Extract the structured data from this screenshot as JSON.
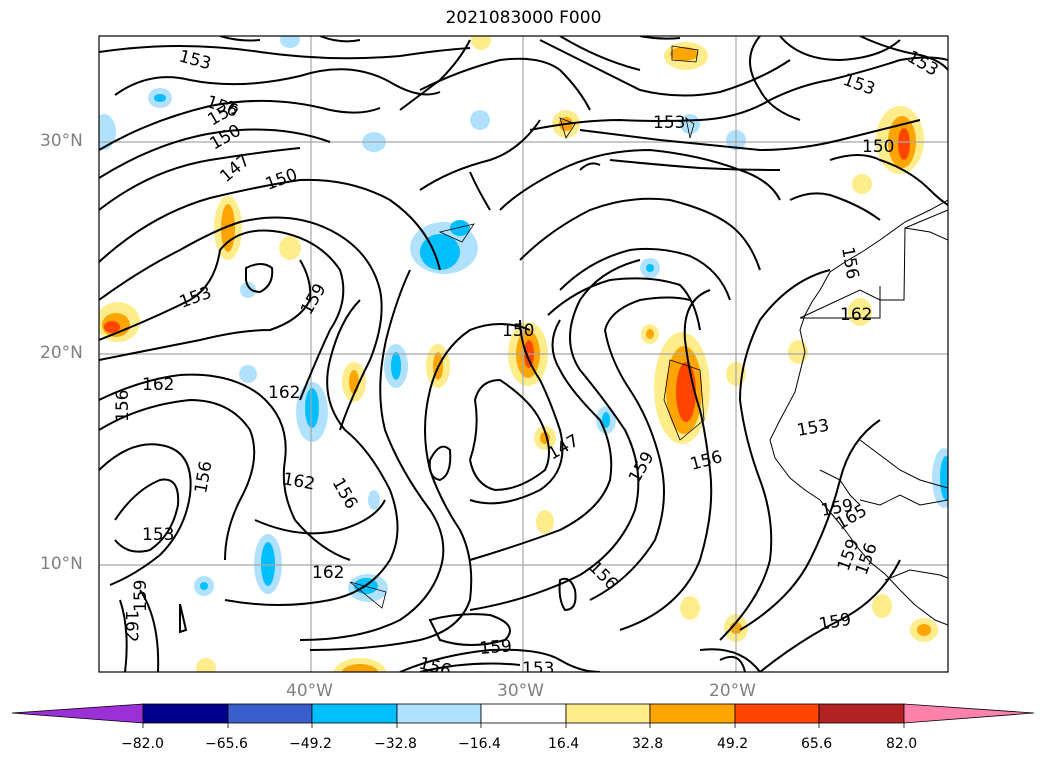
{
  "title": "2021083000 F000",
  "lat_labels": [
    "30°N",
    "20°N",
    "10°N"
  ],
  "lon_labels": [
    "40°W",
    "30°W",
    "20°W"
  ],
  "colorbar": {
    "ticks": [
      "−82.0",
      "−65.6",
      "−49.2",
      "−32.8",
      "−16.4",
      "16.4",
      "32.8",
      "49.2",
      "65.6",
      "82.0"
    ],
    "colors": [
      "#9b30d6",
      "#00008b",
      "#3a5fcd",
      "#00bfff",
      "#b0e2ff",
      "#ffffff",
      "#ffec8b",
      "#ffa500",
      "#ff4500",
      "#b22222",
      "#ff82ab"
    ]
  },
  "contour_labels": [
    "153",
    "156",
    "153",
    "150",
    "147",
    "150",
    "153",
    "159",
    "162",
    "162",
    "156",
    "162",
    "156",
    "156",
    "153",
    "162",
    "159",
    "162",
    "150",
    "147",
    "159",
    "156",
    "159",
    "156",
    "153",
    "153",
    "153",
    "150",
    "153",
    "156",
    "162",
    "156",
    "153",
    "159",
    "165",
    "159",
    "156",
    "159"
  ]
}
